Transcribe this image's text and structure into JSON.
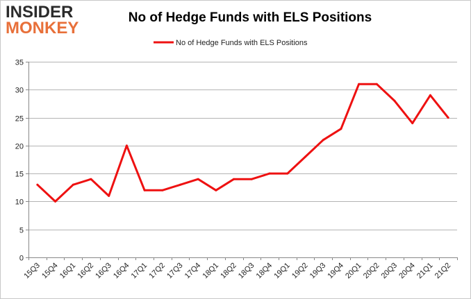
{
  "logo": {
    "line1": "INSIDER",
    "line2": "MONKEY"
  },
  "chart_data": {
    "type": "line",
    "title": "No of Hedge Funds with ELS Positions",
    "xlabel": "",
    "ylabel": "",
    "categories": [
      "15Q3",
      "15Q4",
      "16Q1",
      "16Q2",
      "16Q3",
      "16Q4",
      "17Q1",
      "17Q2",
      "17Q3",
      "17Q4",
      "18Q1",
      "18Q2",
      "18Q3",
      "18Q4",
      "19Q1",
      "19Q2",
      "19Q3",
      "19Q4",
      "20Q1",
      "20Q2",
      "20Q3",
      "20Q4",
      "21Q1",
      "21Q2"
    ],
    "series": [
      {
        "name": "No of Hedge Funds with ELS Positions",
        "color": "#ee1111",
        "values": [
          13,
          10,
          13,
          14,
          11,
          20,
          12,
          12,
          13,
          14,
          12,
          14,
          14,
          15,
          15,
          18,
          21,
          23,
          31,
          31,
          28,
          24,
          29,
          25
        ]
      }
    ],
    "ylim": [
      0,
      35
    ],
    "yticks": [
      0,
      5,
      10,
      15,
      20,
      25,
      30,
      35
    ],
    "grid": true,
    "legend": "top-center"
  }
}
